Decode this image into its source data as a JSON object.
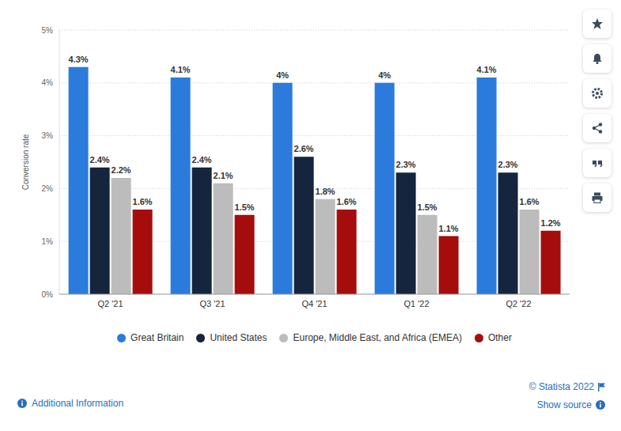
{
  "chart_data": {
    "type": "bar",
    "y_label": "Conversion rate",
    "categories": [
      "Q2 '21",
      "Q3 '21",
      "Q4 '21",
      "Q1 '22",
      "Q2 '22"
    ],
    "series": [
      {
        "name": "Great Britain",
        "color": "#2b7bdc",
        "values": [
          4.3,
          4.1,
          4,
          4,
          4.1
        ],
        "value_labels": [
          "4.3%",
          "4.1%",
          "4%",
          "4%",
          "4.1%"
        ]
      },
      {
        "name": "United States",
        "color": "#14253d",
        "values": [
          2.4,
          2.4,
          2.6,
          2.3,
          2.3
        ],
        "value_labels": [
          "2.4%",
          "2.4%",
          "2.6%",
          "2.3%",
          "2.3%"
        ]
      },
      {
        "name": "Europe, Middle East, and Africa (EMEA)",
        "color": "#bcbcbc",
        "values": [
          2.2,
          2.1,
          1.8,
          1.5,
          1.6
        ],
        "value_labels": [
          "2.2%",
          "2.1%",
          "1.8%",
          "1.5%",
          "1.6%"
        ]
      },
      {
        "name": "Other",
        "color": "#a50d0d",
        "values": [
          1.6,
          1.5,
          1.6,
          1.1,
          1.2
        ],
        "value_labels": [
          "1.6%",
          "1.5%",
          "1.6%",
          "1.1%",
          "1.2%"
        ]
      }
    ],
    "ylim": [
      0,
      5
    ],
    "yticks": [
      {
        "value": 0,
        "label": "0%"
      },
      {
        "value": 1,
        "label": "1%"
      },
      {
        "value": 2,
        "label": "2%"
      },
      {
        "value": 3,
        "label": "3%"
      },
      {
        "value": 4,
        "label": "4%"
      },
      {
        "value": 5,
        "label": "5%"
      }
    ],
    "grid": true,
    "data_labels": true,
    "legend": "bottom",
    "annotations": [
      "© Statista 2022",
      "Show source",
      "Additional Information"
    ]
  }
}
